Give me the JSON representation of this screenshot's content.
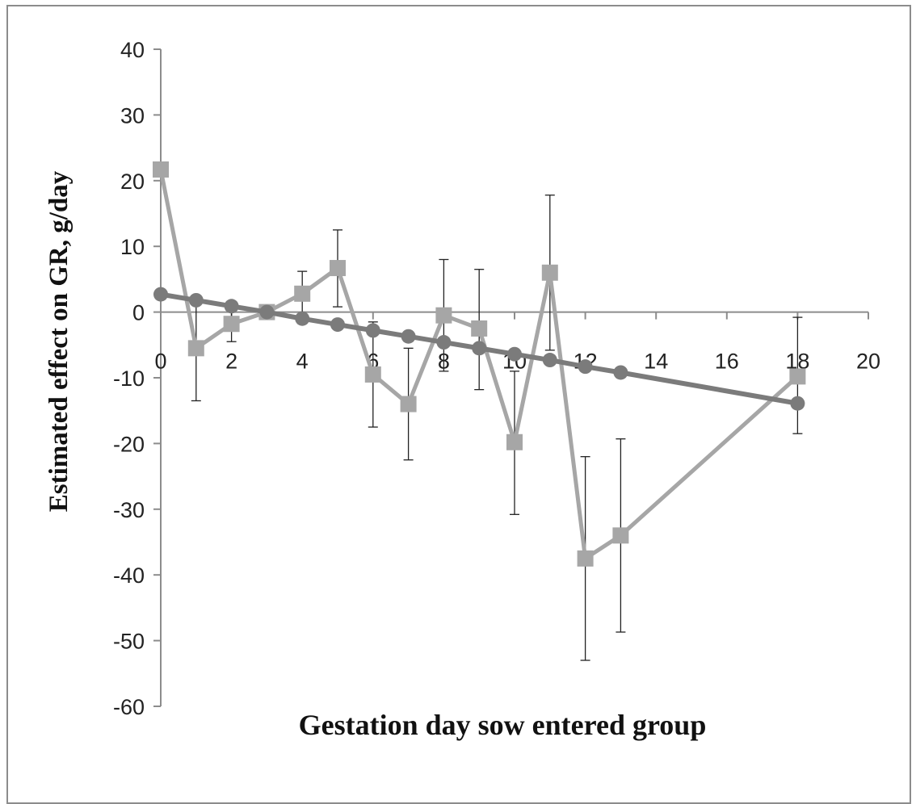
{
  "chart_data": {
    "type": "line",
    "title": "",
    "xlabel": "Gestation day sow entered group",
    "ylabel": "Estimated effect on GR, g/day",
    "xlim": [
      0,
      20
    ],
    "ylim": [
      -60,
      40
    ],
    "xticks": [
      0,
      2,
      4,
      6,
      8,
      10,
      12,
      14,
      16,
      18,
      20
    ],
    "yticks": [
      40,
      30,
      20,
      10,
      0,
      -10,
      -20,
      -30,
      -40,
      -50,
      -60
    ],
    "grid": false,
    "legend": "none",
    "series": [
      {
        "marker": "square",
        "color": "#a6a6a6",
        "points": [
          {
            "x": 0,
            "y": 21.7,
            "err_hi": 21.7,
            "err_lo": 21.7
          },
          {
            "x": 1,
            "y": -5.5,
            "err_hi": 2.5,
            "err_lo": -13.5
          },
          {
            "x": 2,
            "y": -1.8,
            "err_hi": 0.5,
            "err_lo": -4.5
          },
          {
            "x": 3,
            "y": 0.0,
            "err_hi": 0.0,
            "err_lo": 0.0
          },
          {
            "x": 4,
            "y": 2.8,
            "err_hi": 6.2,
            "err_lo": -0.5
          },
          {
            "x": 5,
            "y": 6.7,
            "err_hi": 12.5,
            "err_lo": 0.8
          },
          {
            "x": 6,
            "y": -9.5,
            "err_hi": -1.5,
            "err_lo": -17.5
          },
          {
            "x": 7,
            "y": -14.0,
            "err_hi": -5.5,
            "err_lo": -22.5
          },
          {
            "x": 8,
            "y": -0.5,
            "err_hi": 8.0,
            "err_lo": -9.0
          },
          {
            "x": 9,
            "y": -2.5,
            "err_hi": 6.5,
            "err_lo": -11.8
          },
          {
            "x": 10,
            "y": -19.8,
            "err_hi": -9.0,
            "err_lo": -30.8
          },
          {
            "x": 11,
            "y": 6.0,
            "err_hi": 17.8,
            "err_lo": -5.8
          },
          {
            "x": 12,
            "y": -37.5,
            "err_hi": -22.0,
            "err_lo": -53.0
          },
          {
            "x": 13,
            "y": -34.0,
            "err_hi": -19.3,
            "err_lo": -48.7
          },
          {
            "x": 18,
            "y": -9.8,
            "err_hi": -0.8,
            "err_lo": -18.5
          }
        ]
      },
      {
        "marker": "circle",
        "color": "#7b7b7b",
        "points": [
          {
            "x": 0,
            "y": 2.7
          },
          {
            "x": 1,
            "y": 1.8
          },
          {
            "x": 2,
            "y": 0.9
          },
          {
            "x": 3,
            "y": 0.0
          },
          {
            "x": 4,
            "y": -1.0
          },
          {
            "x": 5,
            "y": -1.9
          },
          {
            "x": 6,
            "y": -2.8
          },
          {
            "x": 7,
            "y": -3.7
          },
          {
            "x": 8,
            "y": -4.6
          },
          {
            "x": 9,
            "y": -5.5
          },
          {
            "x": 10,
            "y": -6.4
          },
          {
            "x": 11,
            "y": -7.3
          },
          {
            "x": 12,
            "y": -8.3
          },
          {
            "x": 13,
            "y": -9.2
          },
          {
            "x": 18,
            "y": -13.9
          }
        ]
      }
    ]
  }
}
